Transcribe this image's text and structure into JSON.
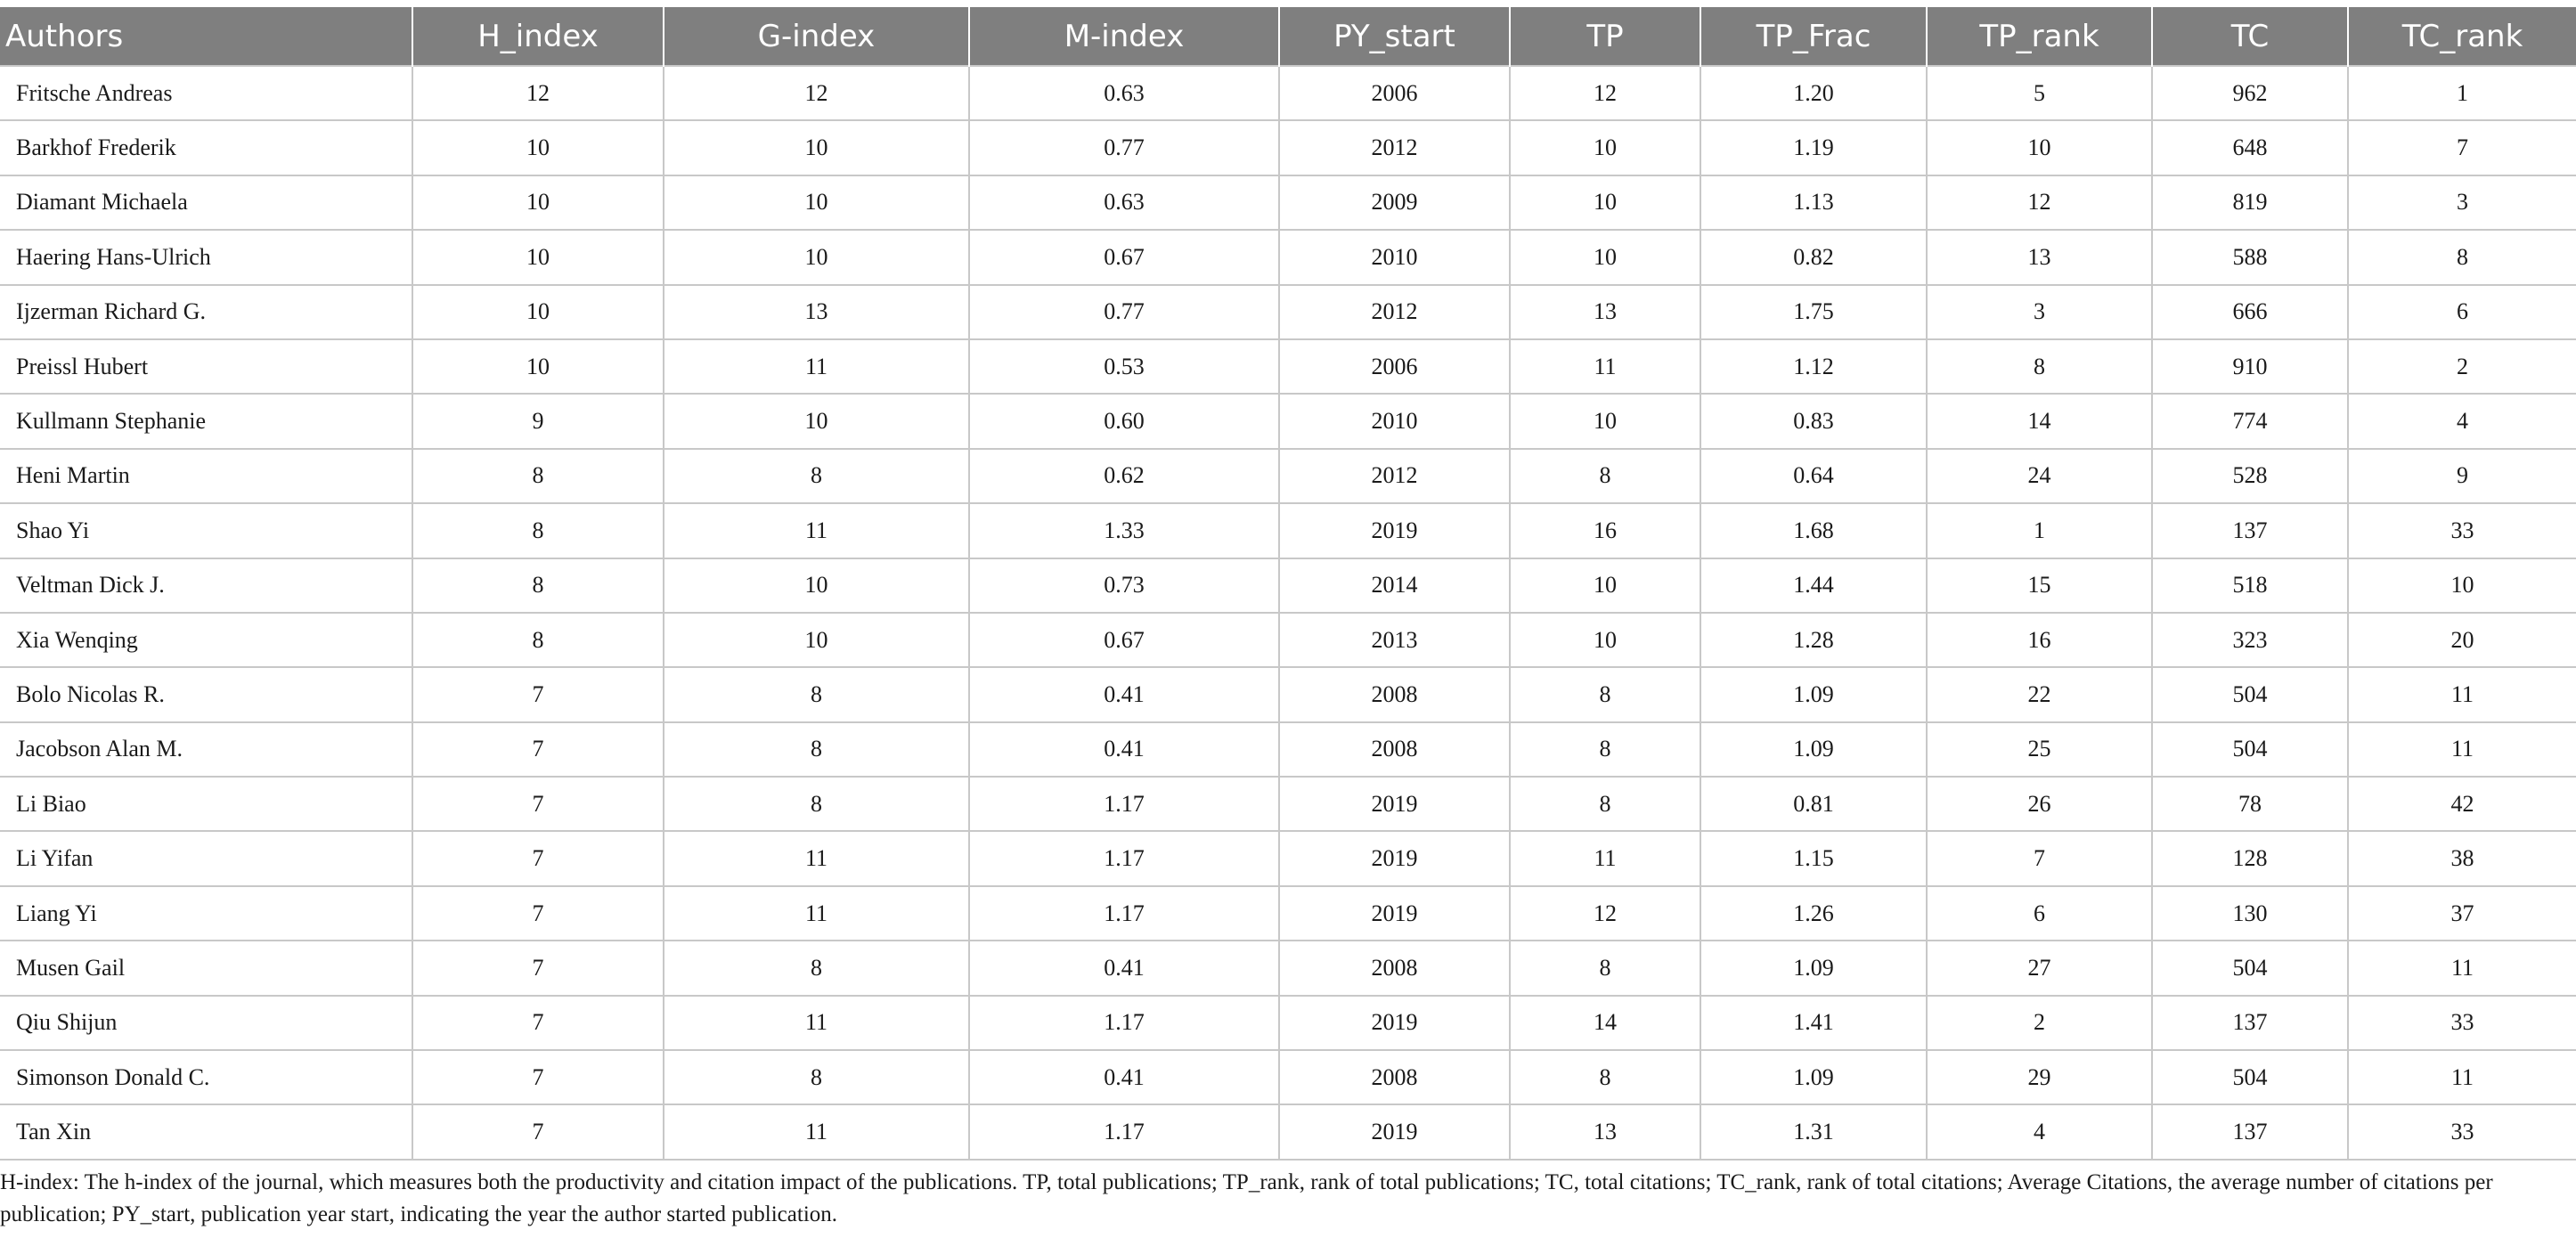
{
  "table": {
    "columns": [
      "Authors",
      "H_index",
      "G-index",
      "M-index",
      "PY_start",
      "TP",
      "TP_Frac",
      "TP_rank",
      "TC",
      "TC_rank"
    ],
    "rows": [
      [
        "Fritsche Andreas",
        "12",
        "12",
        "0.63",
        "2006",
        "12",
        "1.20",
        "5",
        "962",
        "1"
      ],
      [
        "Barkhof Frederik",
        "10",
        "10",
        "0.77",
        "2012",
        "10",
        "1.19",
        "10",
        "648",
        "7"
      ],
      [
        "Diamant Michaela",
        "10",
        "10",
        "0.63",
        "2009",
        "10",
        "1.13",
        "12",
        "819",
        "3"
      ],
      [
        "Haering Hans-Ulrich",
        "10",
        "10",
        "0.67",
        "2010",
        "10",
        "0.82",
        "13",
        "588",
        "8"
      ],
      [
        "Ijzerman Richard G.",
        "10",
        "13",
        "0.77",
        "2012",
        "13",
        "1.75",
        "3",
        "666",
        "6"
      ],
      [
        "Preissl Hubert",
        "10",
        "11",
        "0.53",
        "2006",
        "11",
        "1.12",
        "8",
        "910",
        "2"
      ],
      [
        "Kullmann Stephanie",
        "9",
        "10",
        "0.60",
        "2010",
        "10",
        "0.83",
        "14",
        "774",
        "4"
      ],
      [
        "Heni Martin",
        "8",
        "8",
        "0.62",
        "2012",
        "8",
        "0.64",
        "24",
        "528",
        "9"
      ],
      [
        "Shao Yi",
        "8",
        "11",
        "1.33",
        "2019",
        "16",
        "1.68",
        "1",
        "137",
        "33"
      ],
      [
        "Veltman Dick J.",
        "8",
        "10",
        "0.73",
        "2014",
        "10",
        "1.44",
        "15",
        "518",
        "10"
      ],
      [
        "Xia Wenqing",
        "8",
        "10",
        "0.67",
        "2013",
        "10",
        "1.28",
        "16",
        "323",
        "20"
      ],
      [
        "Bolo Nicolas R.",
        "7",
        "8",
        "0.41",
        "2008",
        "8",
        "1.09",
        "22",
        "504",
        "11"
      ],
      [
        "Jacobson Alan M.",
        "7",
        "8",
        "0.41",
        "2008",
        "8",
        "1.09",
        "25",
        "504",
        "11"
      ],
      [
        "Li Biao",
        "7",
        "8",
        "1.17",
        "2019",
        "8",
        "0.81",
        "26",
        "78",
        "42"
      ],
      [
        "Li Yifan",
        "7",
        "11",
        "1.17",
        "2019",
        "11",
        "1.15",
        "7",
        "128",
        "38"
      ],
      [
        "Liang Yi",
        "7",
        "11",
        "1.17",
        "2019",
        "12",
        "1.26",
        "6",
        "130",
        "37"
      ],
      [
        "Musen Gail",
        "7",
        "8",
        "0.41",
        "2008",
        "8",
        "1.09",
        "27",
        "504",
        "11"
      ],
      [
        "Qiu Shijun",
        "7",
        "11",
        "1.17",
        "2019",
        "14",
        "1.41",
        "2",
        "137",
        "33"
      ],
      [
        "Simonson Donald C.",
        "7",
        "8",
        "0.41",
        "2008",
        "8",
        "1.09",
        "29",
        "504",
        "11"
      ],
      [
        "Tan Xin",
        "7",
        "11",
        "1.17",
        "2019",
        "13",
        "1.31",
        "4",
        "137",
        "33"
      ]
    ]
  },
  "footnote": "H-index: The h-index of the journal, which measures both the productivity and citation impact of the publications. TP, total publications; TP_rank, rank of total publications; TC, total citations; TC_rank, rank of total citations; Average Citations, the average number of citations per publication; PY_start, publication year start, indicating the year the author started publication."
}
